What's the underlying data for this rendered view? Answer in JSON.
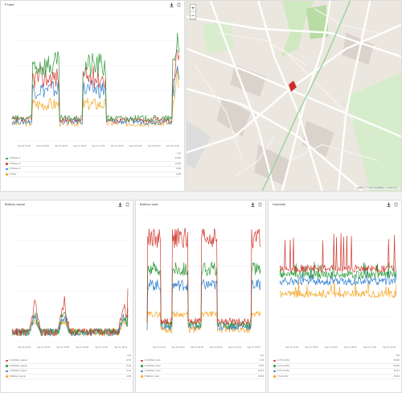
{
  "colors": {
    "red": "#d23b32",
    "green": "#2f9a3a",
    "blue": "#2f7fd0",
    "orange": "#f5a623",
    "grid": "#eeeeee"
  },
  "icons": [
    "download-icon",
    "expand-icon"
  ],
  "panels": {
    "power": {
      "title": "P total",
      "x_ticks": [
        "Sep 20 12:00",
        "Sep 20 18:00",
        "Sep 21 00:00",
        "Sep 21 06:00",
        "Sep 21 12:00",
        "Sep 21 18:00",
        "Sep 22 00:00",
        "Sep 22 06:00",
        "Sep 22 12:00"
      ],
      "legend_header": "last",
      "legend": [
        {
          "name": "P Phase L1",
          "value": "12.80",
          "color": "green"
        },
        {
          "name": "P Phase L2",
          "value": "10.90",
          "color": "red"
        },
        {
          "name": "P Phase L3",
          "value": "8.83",
          "color": "blue"
        },
        {
          "name": "P total",
          "value": "6.80",
          "color": "orange"
        }
      ]
    },
    "battery_signal": {
      "title": "Battery signal",
      "x_ticks": [
        "Sep 20 12:00",
        "Sep 20 18:00",
        "Sep 21 00:00",
        "Sep 21 06:00",
        "Sep 21 12:00",
        "Sep 21 18:00"
      ],
      "legend_header": "last",
      "legend": [
        {
          "name": "L1 Battery signal",
          "value": "6.53",
          "color": "red"
        },
        {
          "name": "L2 Battery signal",
          "value": "9.04",
          "color": "green"
        },
        {
          "name": "L3 Battery signal",
          "value": "9.22",
          "color": "blue"
        },
        {
          "name": "P Battery signal",
          "value": "4.00",
          "color": "orange"
        }
      ]
    },
    "battery_load": {
      "title": "Battery load",
      "x_ticks": [
        "Sep 20 12:00",
        "Sep 20 18:00",
        "Sep 21 00:00",
        "Sep 21 06:00",
        "Sep 21 12:00",
        "Sep 21 18:00"
      ],
      "legend_header": "last",
      "legend": [
        {
          "name": "L1 Battery load",
          "value": "7.18",
          "color": "red"
        },
        {
          "name": "L2 Battery load",
          "value": "8.33",
          "color": "green"
        },
        {
          "name": "L3 Battery load",
          "value": "10.03",
          "color": "blue"
        },
        {
          "name": "P Battery load",
          "value": "10.89",
          "color": "orange"
        }
      ]
    },
    "humidity": {
      "title": "Humidity",
      "x_ticks": [
        "Sep 20 12:00",
        "Sep 20 18:00",
        "Sep 21 00:00",
        "Sep 21 06:00",
        "Sep 21 12:00",
        "Sep 21 18:00"
      ],
      "legend_header": "last",
      "legend": [
        {
          "name": "L1 Humidity",
          "value": "36.80",
          "color": "red"
        },
        {
          "name": "L2 Humidity",
          "value": "40.85",
          "color": "green"
        },
        {
          "name": "L3 Humidity",
          "value": "34.07",
          "color": "blue"
        },
        {
          "name": "P Humidity",
          "value": "29.84",
          "color": "orange"
        }
      ]
    }
  },
  "map": {
    "zoom_in": "+",
    "zoom_out": "−",
    "attribution": "Leaflet | © OpenStreetMap contributors"
  }
}
